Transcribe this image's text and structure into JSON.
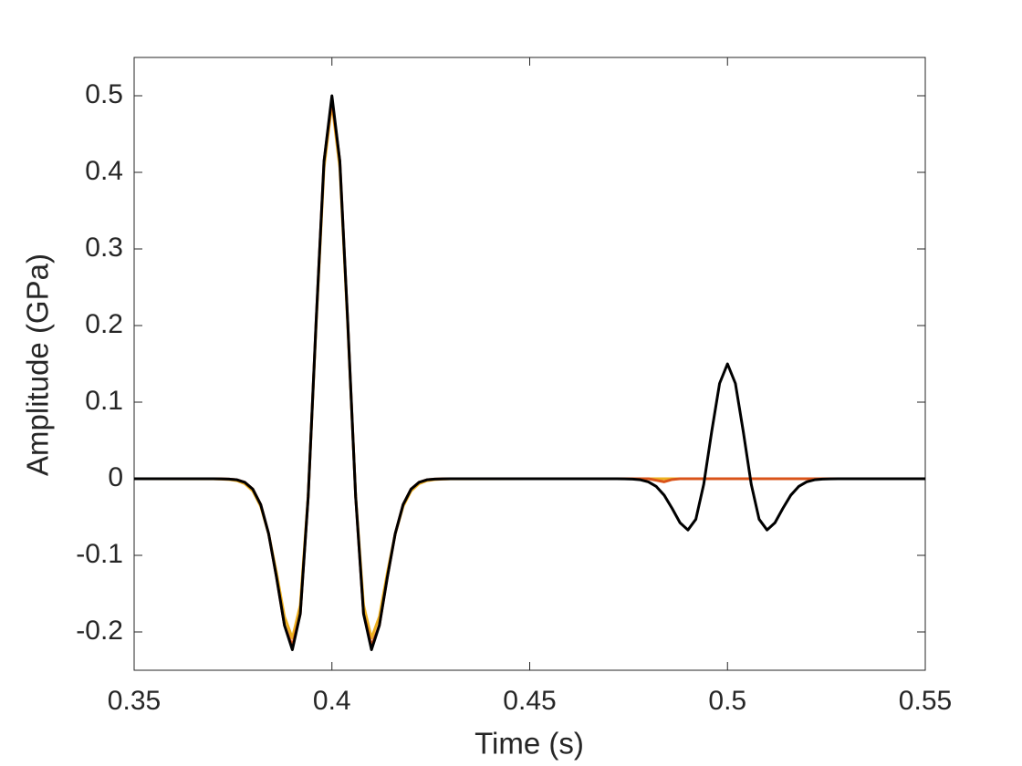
{
  "chart_data": {
    "type": "line",
    "xlabel": "Time (s)",
    "ylabel": "Amplitude (GPa)",
    "xlim": [
      0.35,
      0.55
    ],
    "ylim": [
      -0.25,
      0.55
    ],
    "xticks": [
      0.35,
      0.4,
      0.45,
      0.5,
      0.55
    ],
    "yticks": [
      -0.2,
      -0.1,
      0,
      0.1,
      0.2,
      0.3,
      0.4,
      0.5
    ],
    "grid": false,
    "x": [
      0.35,
      0.37,
      0.372,
      0.374,
      0.376,
      0.378,
      0.38,
      0.382,
      0.384,
      0.386,
      0.388,
      0.39,
      0.392,
      0.394,
      0.396,
      0.398,
      0.4,
      0.402,
      0.404,
      0.406,
      0.408,
      0.41,
      0.412,
      0.414,
      0.416,
      0.418,
      0.42,
      0.422,
      0.424,
      0.426,
      0.428,
      0.43,
      0.45,
      0.47,
      0.472,
      0.474,
      0.476,
      0.478,
      0.48,
      0.482,
      0.484,
      0.486,
      0.488,
      0.49,
      0.492,
      0.494,
      0.496,
      0.498,
      0.5,
      0.502,
      0.504,
      0.506,
      0.508,
      0.51,
      0.512,
      0.514,
      0.516,
      0.518,
      0.52,
      0.522,
      0.524,
      0.526,
      0.528,
      0.53,
      0.55
    ],
    "series": [
      {
        "name": "Orange",
        "color": "#EDB120",
        "values": [
          0,
          -0.0002,
          -0.0004,
          -0.001,
          -0.0025,
          -0.0065,
          -0.016,
          -0.036,
          -0.072,
          -0.123,
          -0.18,
          -0.208,
          -0.165,
          -0.022,
          0.2,
          0.406,
          0.49,
          0.406,
          0.2,
          -0.022,
          -0.165,
          -0.208,
          -0.18,
          -0.123,
          -0.072,
          -0.036,
          -0.016,
          -0.0065,
          -0.0025,
          -0.001,
          -0.0004,
          -0.0002,
          0,
          0,
          0,
          0,
          0,
          0,
          0,
          0,
          0,
          0,
          0,
          0,
          0,
          0,
          0,
          0,
          0,
          0,
          0,
          0,
          0,
          0,
          0,
          0,
          0,
          0,
          0,
          0,
          0,
          0,
          0,
          0,
          0
        ]
      },
      {
        "name": "Red",
        "color": "#D95319",
        "values": [
          0,
          0,
          -0.0001,
          -0.0004,
          -0.0014,
          -0.0047,
          -0.0136,
          -0.0337,
          -0.0717,
          -0.1289,
          -0.1913,
          -0.218,
          -0.1763,
          -0.0236,
          0.2044,
          0.4145,
          0.495,
          0.4145,
          0.2044,
          -0.0236,
          -0.1763,
          -0.218,
          -0.1913,
          -0.1289,
          -0.0717,
          -0.0337,
          -0.0136,
          -0.0047,
          -0.0014,
          -0.0004,
          -0.0001,
          0,
          0,
          0,
          0,
          0,
          0,
          0,
          0,
          -0.002,
          -0.004,
          -0.001,
          0,
          0,
          0,
          0,
          0,
          0,
          0,
          0,
          0,
          0,
          0,
          0,
          0,
          0,
          0,
          0,
          0,
          0,
          0,
          0,
          0,
          0,
          0
        ]
      },
      {
        "name": "Black",
        "color": "#000000",
        "values": [
          0,
          0,
          -0.0001,
          -0.0004,
          -0.0014,
          -0.0047,
          -0.0136,
          -0.0337,
          -0.0717,
          -0.1289,
          -0.1913,
          -0.2232,
          -0.1763,
          -0.0236,
          0.2044,
          0.4145,
          0.5,
          0.4145,
          0.2044,
          -0.0236,
          -0.1763,
          -0.2232,
          -0.1913,
          -0.1289,
          -0.0717,
          -0.0337,
          -0.0136,
          -0.0047,
          -0.0014,
          -0.0004,
          -0.0001,
          0,
          0,
          0,
          0,
          -0.0001,
          -0.0004,
          -0.0014,
          -0.0041,
          -0.0101,
          -0.0215,
          -0.0387,
          -0.0574,
          -0.0669,
          -0.0529,
          -0.0071,
          0.0613,
          0.1244,
          0.15,
          0.1244,
          0.0613,
          -0.0071,
          -0.0529,
          -0.0669,
          -0.0574,
          -0.0387,
          -0.0215,
          -0.0101,
          -0.0041,
          -0.0014,
          -0.0004,
          -0.0001,
          0,
          0,
          0
        ]
      }
    ]
  }
}
